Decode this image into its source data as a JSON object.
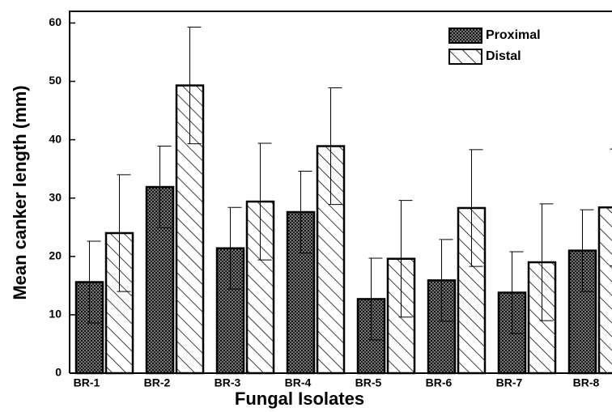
{
  "chart_data": {
    "type": "bar",
    "xlabel": "Fungal Isolates",
    "ylabel": "Mean canker length (mm)",
    "categories": [
      "BR-1",
      "BR-2",
      "BR-3",
      "BR-4",
      "BR-5",
      "BR-6",
      "BR-7",
      "BR-8"
    ],
    "series": [
      {
        "name": "Proximal",
        "color": "#4a4a4a",
        "pattern": "dots",
        "values": [
          15.6,
          31.9,
          21.4,
          27.6,
          12.7,
          15.9,
          13.8,
          21
        ],
        "errors": [
          7,
          7,
          7,
          7,
          7,
          7,
          7,
          7
        ]
      },
      {
        "name": "Distal",
        "color": "#ffffff",
        "pattern": "hatch",
        "values": [
          24,
          49.3,
          29.4,
          38.9,
          19.6,
          28.3,
          19,
          28.4
        ],
        "errors": [
          10,
          10,
          10,
          10,
          10,
          10,
          10,
          10
        ]
      }
    ],
    "ylim": [
      0,
      62
    ],
    "yticks": [
      0,
      10,
      20,
      30,
      40,
      50,
      60
    ],
    "legend": "upper right"
  }
}
